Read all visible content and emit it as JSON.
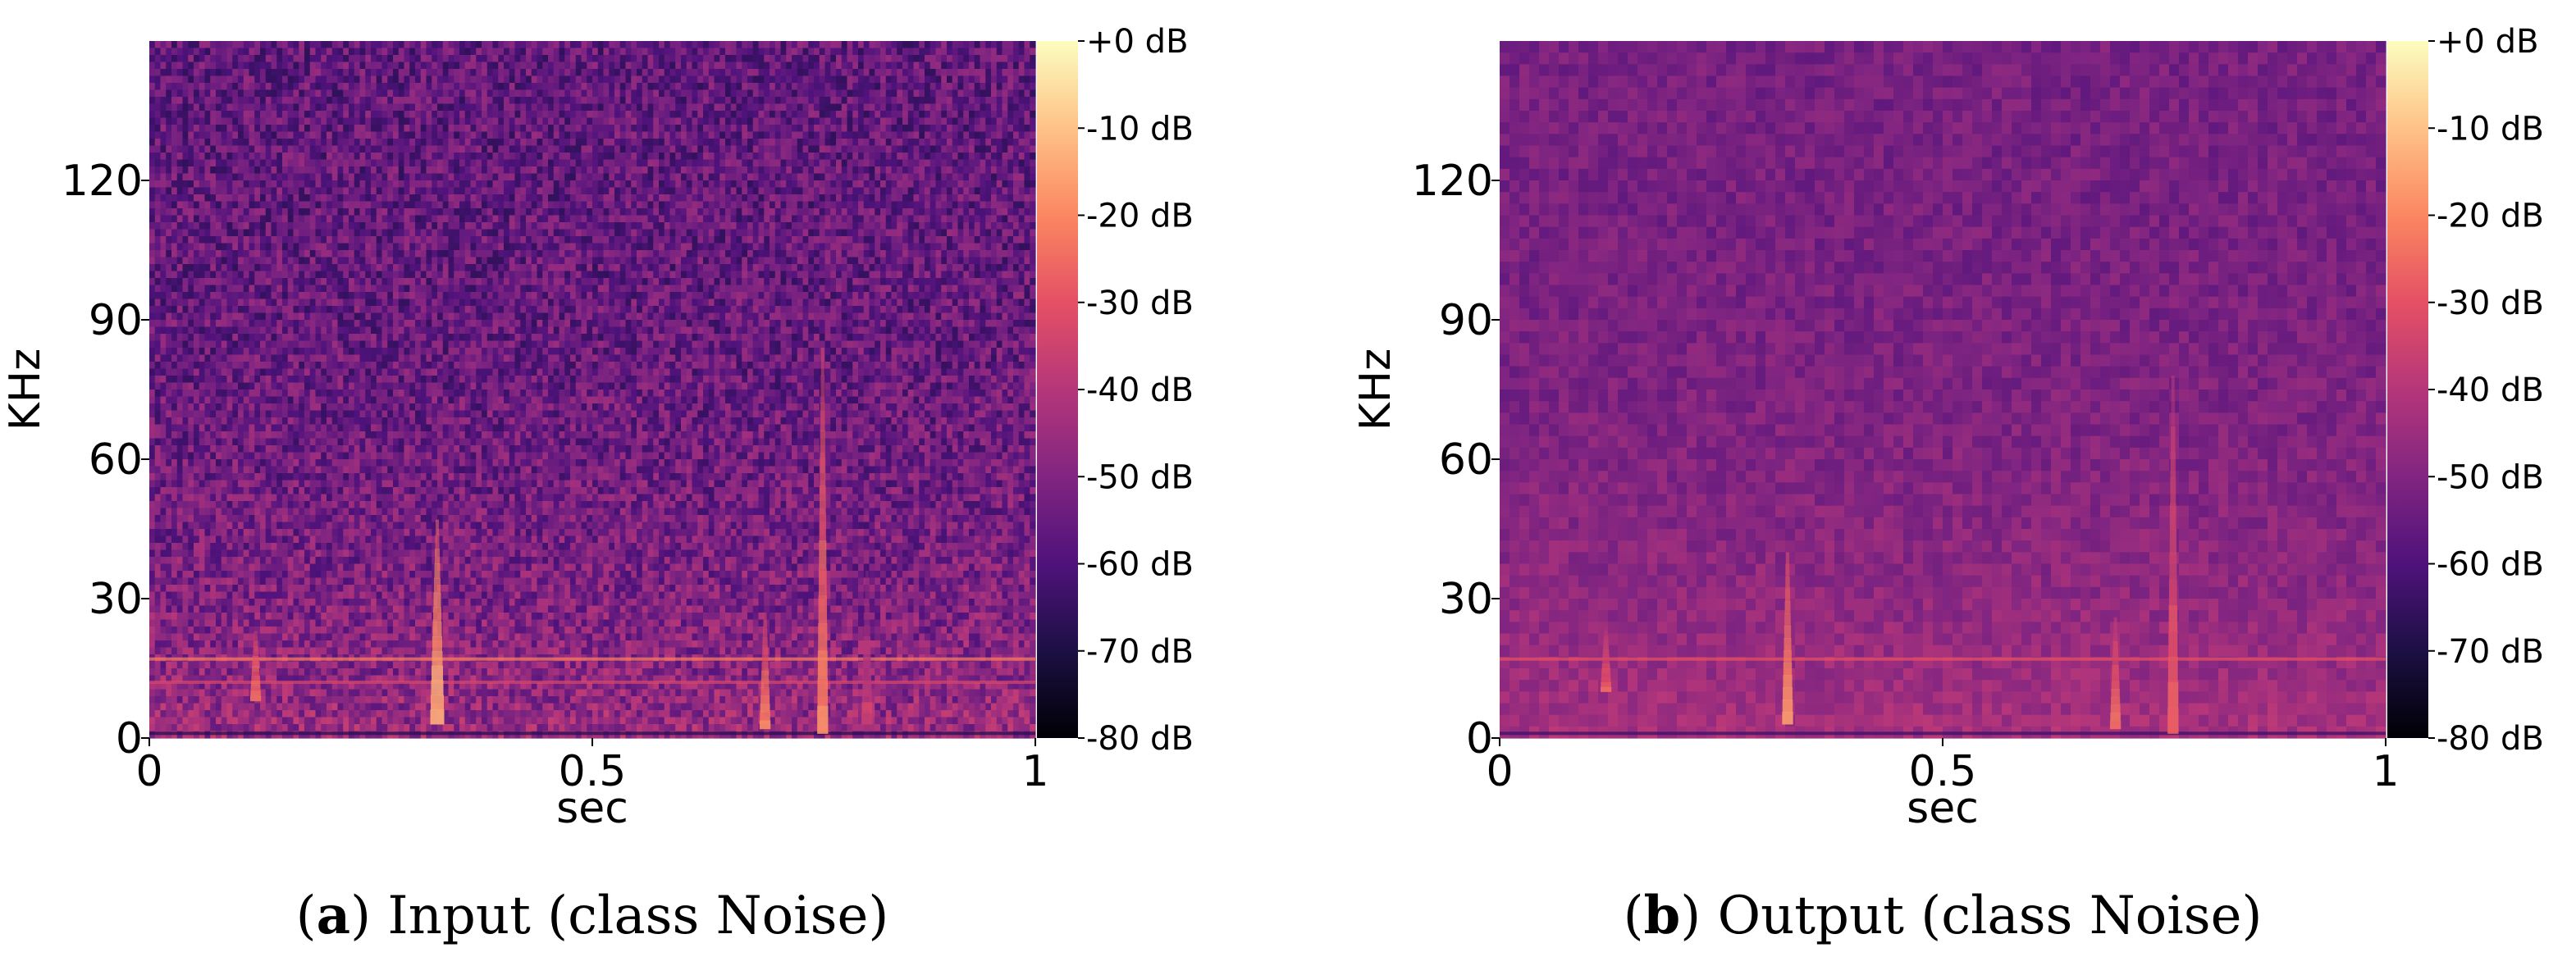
{
  "chart_data": [
    {
      "type": "heatmap",
      "panel_label": "a",
      "caption": "Input (class Noise)",
      "xlabel": "sec",
      "ylabel": "KHz",
      "xlim": [
        0,
        1
      ],
      "ylim": [
        0,
        150
      ],
      "x_ticks": [
        0,
        0.5,
        1
      ],
      "x_tick_labels": [
        "0",
        "0.5",
        "1"
      ],
      "y_ticks": [
        0,
        30,
        60,
        90,
        120
      ],
      "y_tick_labels": [
        "0",
        "30",
        "60",
        "90",
        "120"
      ],
      "colorbar": {
        "range_db": [
          -80,
          0
        ],
        "ticks": [
          0,
          -10,
          -20,
          -30,
          -40,
          -50,
          -60,
          -70,
          -80
        ],
        "tick_labels": [
          "+0 dB",
          "-10 dB",
          "-20 dB",
          "-30 dB",
          "-40 dB",
          "-50 dB",
          "-60 dB",
          "-70 dB",
          "-80 dB"
        ]
      },
      "colormap": "magma",
      "texture": "fine",
      "background_db": {
        "top": -56,
        "bottom": -46
      },
      "horizontal_lines": [
        {
          "freq_khz": 17,
          "db": -22
        },
        {
          "freq_khz": 12,
          "db": -34
        },
        {
          "freq_khz": 1,
          "db": -68
        }
      ],
      "events": [
        {
          "t": 0.12,
          "f_min": 8,
          "f_max": 23,
          "db": -22
        },
        {
          "t": 0.325,
          "f_min": 3,
          "f_max": 47,
          "db": -12
        },
        {
          "t": 0.695,
          "f_min": 2,
          "f_max": 27,
          "db": -20
        },
        {
          "t": 0.76,
          "f_min": 1,
          "f_max": 84,
          "db": -20
        },
        {
          "t": 0.81,
          "f_min": 3,
          "f_max": 36,
          "db": -34
        }
      ]
    },
    {
      "type": "heatmap",
      "panel_label": "b",
      "caption": "Output (class Noise)",
      "xlabel": "sec",
      "ylabel": "KHz",
      "xlim": [
        0,
        1
      ],
      "ylim": [
        0,
        150
      ],
      "x_ticks": [
        0,
        0.5,
        1
      ],
      "x_tick_labels": [
        "0",
        "0.5",
        "1"
      ],
      "y_ticks": [
        0,
        30,
        60,
        90,
        120
      ],
      "y_tick_labels": [
        "0",
        "30",
        "60",
        "90",
        "120"
      ],
      "colorbar": {
        "range_db": [
          -80,
          0
        ],
        "ticks": [
          0,
          -10,
          -20,
          -30,
          -40,
          -50,
          -60,
          -70,
          -80
        ],
        "tick_labels": [
          "+0 dB",
          "-10 dB",
          "-20 dB",
          "-30 dB",
          "-40 dB",
          "-50 dB",
          "-60 dB",
          "-70 dB",
          "-80 dB"
        ]
      },
      "colormap": "magma",
      "texture": "smooth",
      "background_db": {
        "top": -52,
        "bottom": -43
      },
      "horizontal_lines": [
        {
          "freq_khz": 17,
          "db": -30
        },
        {
          "freq_khz": 1,
          "db": -64
        }
      ],
      "events": [
        {
          "t": 0.12,
          "f_min": 10,
          "f_max": 24,
          "db": -26
        },
        {
          "t": 0.325,
          "f_min": 3,
          "f_max": 40,
          "db": -18
        },
        {
          "t": 0.695,
          "f_min": 2,
          "f_max": 26,
          "db": -24
        },
        {
          "t": 0.76,
          "f_min": 1,
          "f_max": 78,
          "db": -26
        }
      ]
    }
  ]
}
